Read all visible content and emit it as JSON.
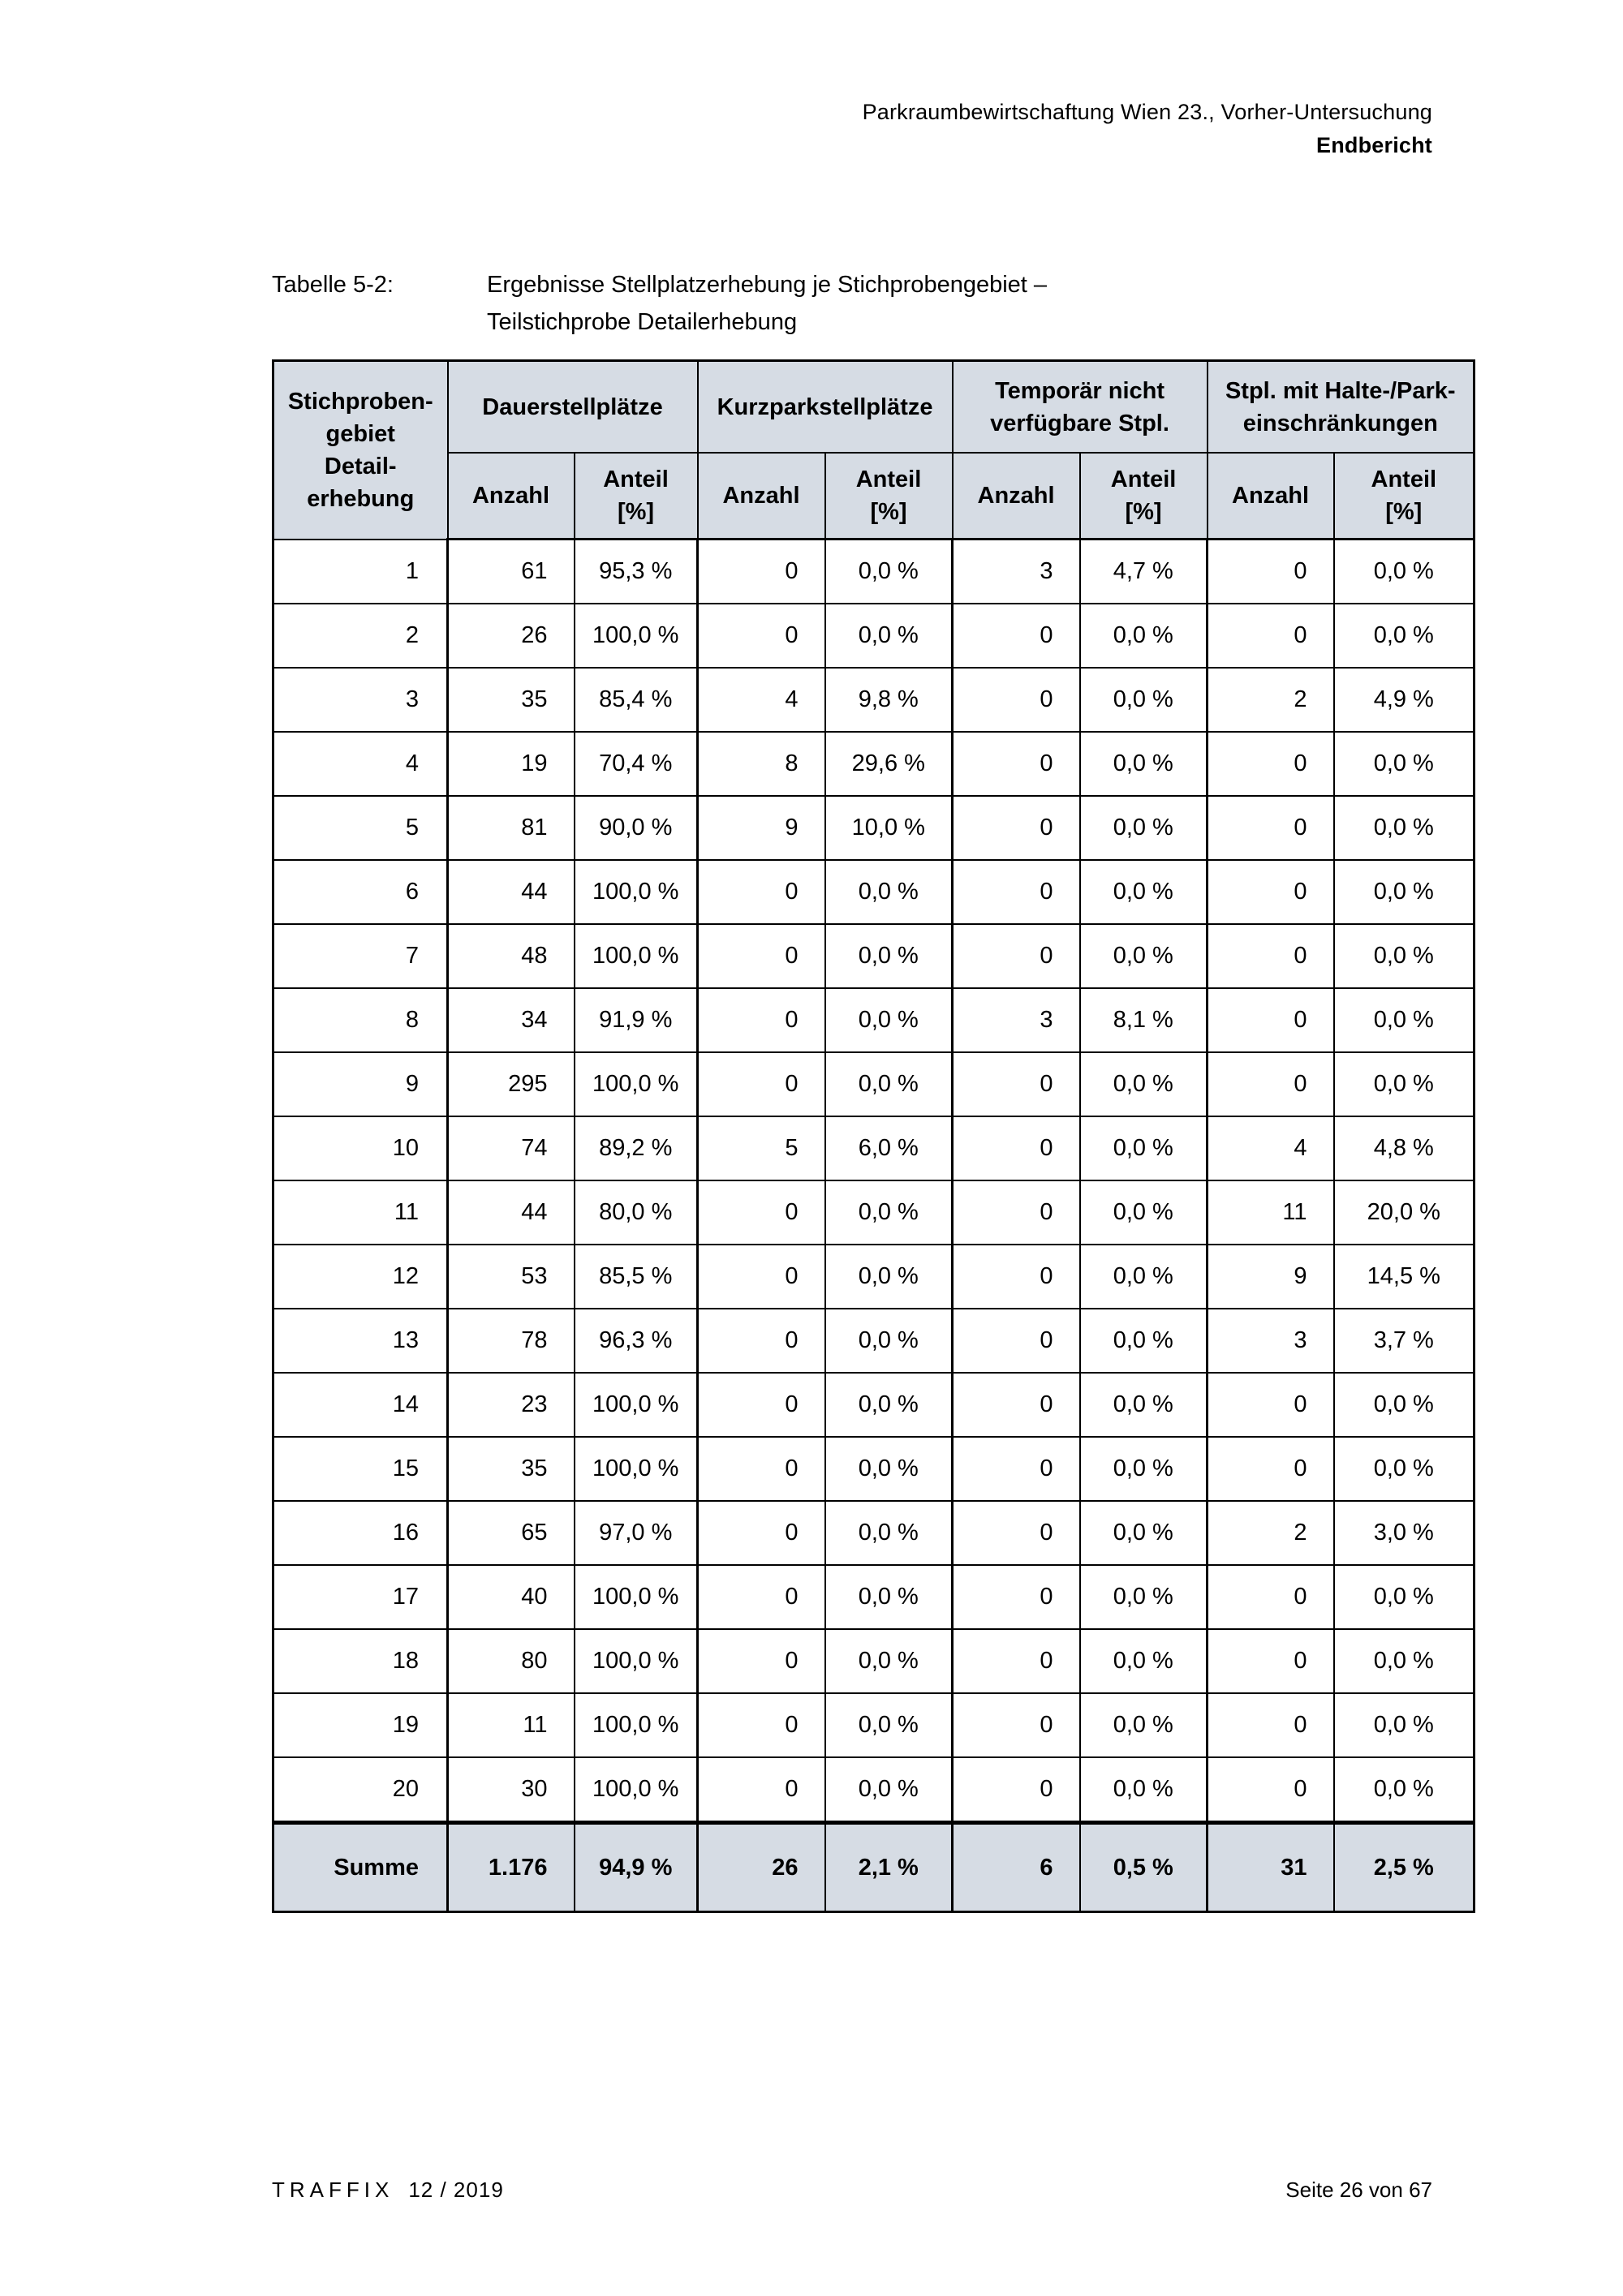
{
  "page_header": {
    "line1": "Parkraumbewirtschaftung Wien 23., Vorher-Untersuchung",
    "line2": "Endbericht"
  },
  "caption": {
    "label": "Tabelle 5-2:",
    "text": "Ergebnisse Stellplatzerhebung je Stichprobengebiet –\nTeilstichprobe Detailerhebung"
  },
  "table": {
    "corner_header": "Stichproben-\ngebiet\nDetail-\nerhebung",
    "groups": [
      {
        "label": "Dauerstellplätze"
      },
      {
        "label": "Kurzparkstellplätze"
      },
      {
        "label": "Temporär nicht\nverfügbare Stpl."
      },
      {
        "label": "Stpl. mit Halte-/Park-\neinschränkungen"
      }
    ],
    "sub_anzahl": "Anzahl",
    "sub_anteil": "Anteil\n[%]",
    "rows": [
      [
        "1",
        "61",
        "95,3 %",
        "0",
        "0,0 %",
        "3",
        "4,7 %",
        "0",
        "0,0 %"
      ],
      [
        "2",
        "26",
        "100,0 %",
        "0",
        "0,0 %",
        "0",
        "0,0 %",
        "0",
        "0,0 %"
      ],
      [
        "3",
        "35",
        "85,4 %",
        "4",
        "9,8 %",
        "0",
        "0,0 %",
        "2",
        "4,9 %"
      ],
      [
        "4",
        "19",
        "70,4 %",
        "8",
        "29,6 %",
        "0",
        "0,0 %",
        "0",
        "0,0 %"
      ],
      [
        "5",
        "81",
        "90,0 %",
        "9",
        "10,0 %",
        "0",
        "0,0 %",
        "0",
        "0,0 %"
      ],
      [
        "6",
        "44",
        "100,0 %",
        "0",
        "0,0 %",
        "0",
        "0,0 %",
        "0",
        "0,0 %"
      ],
      [
        "7",
        "48",
        "100,0 %",
        "0",
        "0,0 %",
        "0",
        "0,0 %",
        "0",
        "0,0 %"
      ],
      [
        "8",
        "34",
        "91,9 %",
        "0",
        "0,0 %",
        "3",
        "8,1 %",
        "0",
        "0,0 %"
      ],
      [
        "9",
        "295",
        "100,0 %",
        "0",
        "0,0 %",
        "0",
        "0,0 %",
        "0",
        "0,0 %"
      ],
      [
        "10",
        "74",
        "89,2 %",
        "5",
        "6,0 %",
        "0",
        "0,0 %",
        "4",
        "4,8 %"
      ],
      [
        "11",
        "44",
        "80,0 %",
        "0",
        "0,0 %",
        "0",
        "0,0 %",
        "11",
        "20,0 %"
      ],
      [
        "12",
        "53",
        "85,5 %",
        "0",
        "0,0 %",
        "0",
        "0,0 %",
        "9",
        "14,5 %"
      ],
      [
        "13",
        "78",
        "96,3 %",
        "0",
        "0,0 %",
        "0",
        "0,0 %",
        "3",
        "3,7 %"
      ],
      [
        "14",
        "23",
        "100,0 %",
        "0",
        "0,0 %",
        "0",
        "0,0 %",
        "0",
        "0,0 %"
      ],
      [
        "15",
        "35",
        "100,0 %",
        "0",
        "0,0 %",
        "0",
        "0,0 %",
        "0",
        "0,0 %"
      ],
      [
        "16",
        "65",
        "97,0 %",
        "0",
        "0,0 %",
        "0",
        "0,0 %",
        "2",
        "3,0 %"
      ],
      [
        "17",
        "40",
        "100,0 %",
        "0",
        "0,0 %",
        "0",
        "0,0 %",
        "0",
        "0,0 %"
      ],
      [
        "18",
        "80",
        "100,0 %",
        "0",
        "0,0 %",
        "0",
        "0,0 %",
        "0",
        "0,0 %"
      ],
      [
        "19",
        "11",
        "100,0 %",
        "0",
        "0,0 %",
        "0",
        "0,0 %",
        "0",
        "0,0 %"
      ],
      [
        "20",
        "30",
        "100,0 %",
        "0",
        "0,0 %",
        "0",
        "0,0 %",
        "0",
        "0,0 %"
      ]
    ],
    "summary": [
      "Summe",
      "1.176",
      "94,9 %",
      "26",
      "2,1 %",
      "6",
      "0,5 %",
      "31",
      "2,5 %"
    ]
  },
  "footer": {
    "left_brand": "TRAFFIX",
    "left_issue": "12 / 2019",
    "right": "Seite 26 von 67"
  },
  "colors": {
    "header_bg": "#d6dce4",
    "border": "#000000",
    "page_bg": "#ffffff"
  }
}
